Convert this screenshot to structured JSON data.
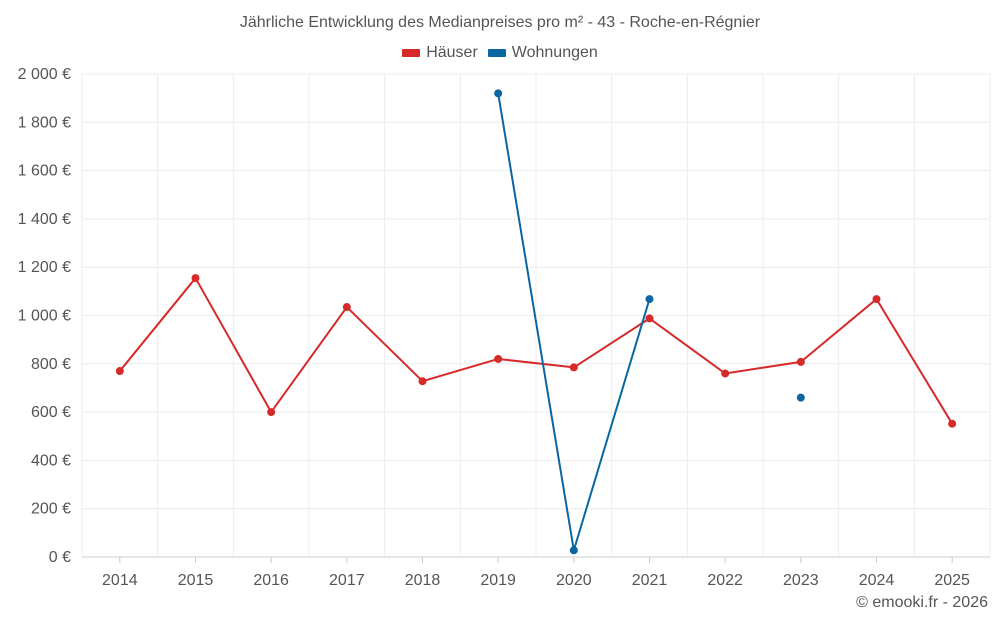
{
  "chart_data": {
    "type": "line",
    "title": "Jährliche Entwicklung des Medianpreises pro m² - 43 - Roche-en-Régnier",
    "categories": [
      "2014",
      "2015",
      "2016",
      "2017",
      "2018",
      "2019",
      "2020",
      "2021",
      "2022",
      "2023",
      "2024",
      "2025"
    ],
    "y_ticks": [
      0,
      200,
      400,
      600,
      800,
      1000,
      1200,
      1400,
      1600,
      1800,
      2000
    ],
    "y_tick_labels": [
      "0 €",
      "200 €",
      "400 €",
      "600 €",
      "800 €",
      "1 000 €",
      "1 200 €",
      "1 400 €",
      "1 600 €",
      "1 800 €",
      "2 000 €"
    ],
    "ylim": [
      0,
      2000
    ],
    "grid": true,
    "legend_position": "top-center",
    "series": [
      {
        "name": "Häuser",
        "color": "#d62a2a",
        "values": [
          770,
          1155,
          600,
          1035,
          728,
          820,
          785,
          988,
          760,
          808,
          1068,
          552
        ]
      },
      {
        "name": "Wohnungen",
        "color": "#0a66a3",
        "values": [
          null,
          null,
          null,
          null,
          null,
          1920,
          28,
          1068,
          null,
          660,
          null,
          null
        ]
      }
    ],
    "credit": "© emooki.fr - 2026"
  }
}
